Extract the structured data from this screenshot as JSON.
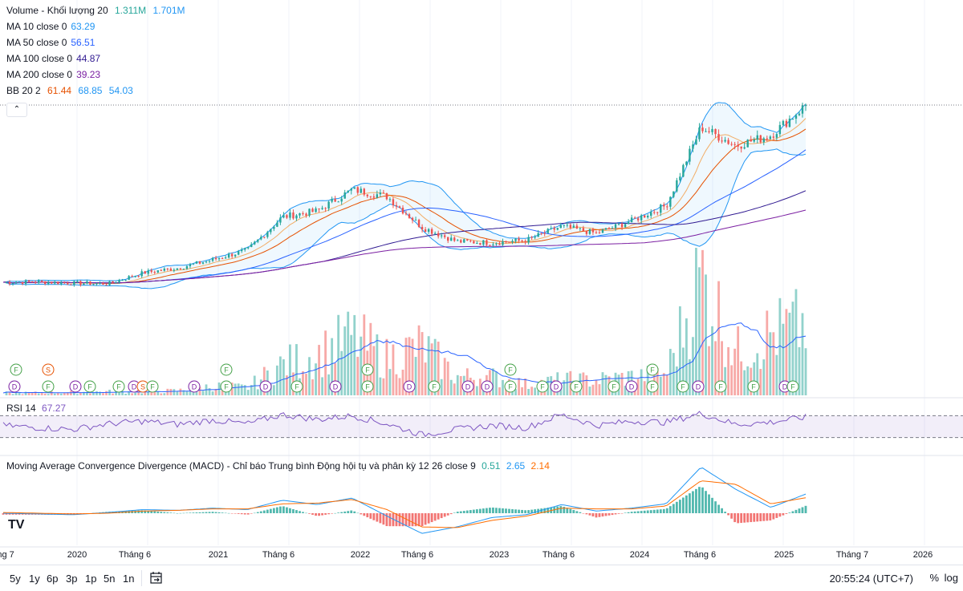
{
  "legend": {
    "volume": {
      "name": "Volume - Khối lượng 20",
      "v1": "1.311M",
      "v2": "1.701M"
    },
    "ma10": {
      "name": "MA 10 close 0",
      "value": "63.29"
    },
    "ma50": {
      "name": "MA 50 close 0",
      "value": "56.51"
    },
    "ma100": {
      "name": "MA 100 close 0",
      "value": "44.87"
    },
    "ma200": {
      "name": "MA 200 close 0",
      "value": "39.23"
    },
    "bb": {
      "name": "BB 20 2",
      "v1": "61.44",
      "v2": "68.85",
      "v3": "54.03"
    },
    "collapse_icon": "chevron-up-icon"
  },
  "rsi": {
    "name": "RSI 14",
    "value": "67.27"
  },
  "macd": {
    "name": "Moving Average Convergence Divergence (MACD) - Chỉ báo Trung bình Động hội tụ và phân kỳ 12 26 close 9",
    "v1": "0.51",
    "v2": "2.65",
    "v3": "2.14"
  },
  "x_axis_labels": [
    "áng 7",
    "2020",
    "Tháng 6",
    "2021",
    "Tháng 6",
    "2022",
    "Tháng 6",
    "2023",
    "Tháng 6",
    "2024",
    "Tháng 6",
    "2025",
    "Tháng 7",
    "2026"
  ],
  "ranges": [
    "5y",
    "1y",
    "6p",
    "3p",
    "1p",
    "5n",
    "1n"
  ],
  "clock": "20:55:24 (UTC+7)",
  "pct_label": "%",
  "log_label": "log",
  "logo": "TV",
  "colors": {
    "up": "#26a69a",
    "down": "#ef5350",
    "ma10": "#f57c00",
    "ma50": "#2962ff",
    "ma100": "#311b92",
    "ma200": "#7b1fa2",
    "bb_basis": "#e65100",
    "bb_band": "#2196f3",
    "rsi": "#7e57c2",
    "macd": "#2196f3",
    "signal": "#ff6d00"
  },
  "chart_data": [
    {
      "type": "line",
      "title": "Price",
      "x": [
        "2019-07",
        "2019-10",
        "2020-01",
        "2020-04",
        "2020-07",
        "2020-10",
        "2021-01",
        "2021-04",
        "2021-07",
        "2021-10",
        "2022-01",
        "2022-04",
        "2022-07",
        "2022-10",
        "2023-01",
        "2023-04",
        "2023-07",
        "2023-10",
        "2024-01",
        "2024-04",
        "2024-07",
        "2024-10",
        "2025-01",
        "2025-03"
      ],
      "series": [
        {
          "name": "close",
          "values": [
            25.5,
            25.6,
            25.3,
            25.1,
            27.8,
            29,
            31,
            33.4,
            41.5,
            43,
            48.2,
            46.5,
            39,
            35.5,
            35.2,
            35.8,
            39.2,
            37.5,
            40.5,
            44.3,
            63.5,
            59,
            61.5,
            68.9
          ]
        }
      ],
      "ylim": [
        20,
        75
      ]
    },
    {
      "type": "bar",
      "title": "Volume",
      "categories": [
        "2019-07",
        "2019-10",
        "2020-01",
        "2020-04",
        "2020-07",
        "2020-10",
        "2021-01",
        "2021-04",
        "2021-07",
        "2021-10",
        "2022-01",
        "2022-04",
        "2022-07",
        "2022-10",
        "2023-01",
        "2023-04",
        "2023-07",
        "2023-10",
        "2024-01",
        "2024-04",
        "2024-07",
        "2024-10",
        "2025-01",
        "2025-03"
      ],
      "values": [
        0.08,
        0.08,
        0.1,
        0.12,
        0.12,
        0.15,
        0.3,
        0.25,
        1.0,
        1.3,
        1.9,
        1.2,
        1.6,
        0.6,
        0.6,
        0.35,
        0.5,
        0.5,
        0.6,
        0.7,
        3.9,
        1.4,
        2.0,
        2.3
      ]
    },
    {
      "type": "line",
      "title": "RSI 14",
      "x": [
        "2019-07",
        "2019-10",
        "2020-01",
        "2020-04",
        "2020-07",
        "2020-10",
        "2021-01",
        "2021-04",
        "2021-07",
        "2021-10",
        "2022-01",
        "2022-04",
        "2022-07",
        "2022-10",
        "2023-01",
        "2023-04",
        "2023-07",
        "2023-10",
        "2024-01",
        "2024-04",
        "2024-07",
        "2024-10",
        "2025-01",
        "2025-03"
      ],
      "series": [
        {
          "name": "RSI",
          "values": [
            52,
            48,
            45,
            55,
            60,
            54,
            62,
            55,
            72,
            63,
            70,
            55,
            35,
            45,
            52,
            48,
            72,
            52,
            60,
            58,
            74,
            54,
            58,
            67.27
          ]
        }
      ],
      "ylim": [
        0,
        100
      ],
      "bands": [
        30,
        70
      ]
    },
    {
      "type": "line",
      "title": "MACD",
      "x": [
        "2019-07",
        "2019-10",
        "2020-01",
        "2020-04",
        "2020-07",
        "2020-10",
        "2021-01",
        "2021-04",
        "2021-07",
        "2021-10",
        "2022-01",
        "2022-04",
        "2022-07",
        "2022-10",
        "2023-01",
        "2023-04",
        "2023-07",
        "2023-10",
        "2024-01",
        "2024-04",
        "2024-07",
        "2024-10",
        "2025-01",
        "2025-03"
      ],
      "series": [
        {
          "name": "macd",
          "values": [
            0.0,
            -0.1,
            -0.2,
            0.1,
            0.5,
            0.4,
            0.7,
            0.5,
            1.8,
            1.2,
            2.1,
            -0.4,
            -2.8,
            -1.9,
            -0.6,
            -0.2,
            1.2,
            0.3,
            0.7,
            1.3,
            6.4,
            3.3,
            0.8,
            2.65
          ]
        },
        {
          "name": "signal",
          "values": [
            0.1,
            0.0,
            -0.1,
            0.0,
            0.3,
            0.4,
            0.6,
            0.6,
            1.3,
            1.4,
            1.9,
            0.5,
            -1.9,
            -2.0,
            -1.0,
            -0.4,
            0.7,
            0.6,
            0.6,
            1.0,
            4.5,
            4.0,
            1.3,
            2.14
          ]
        }
      ]
    }
  ]
}
